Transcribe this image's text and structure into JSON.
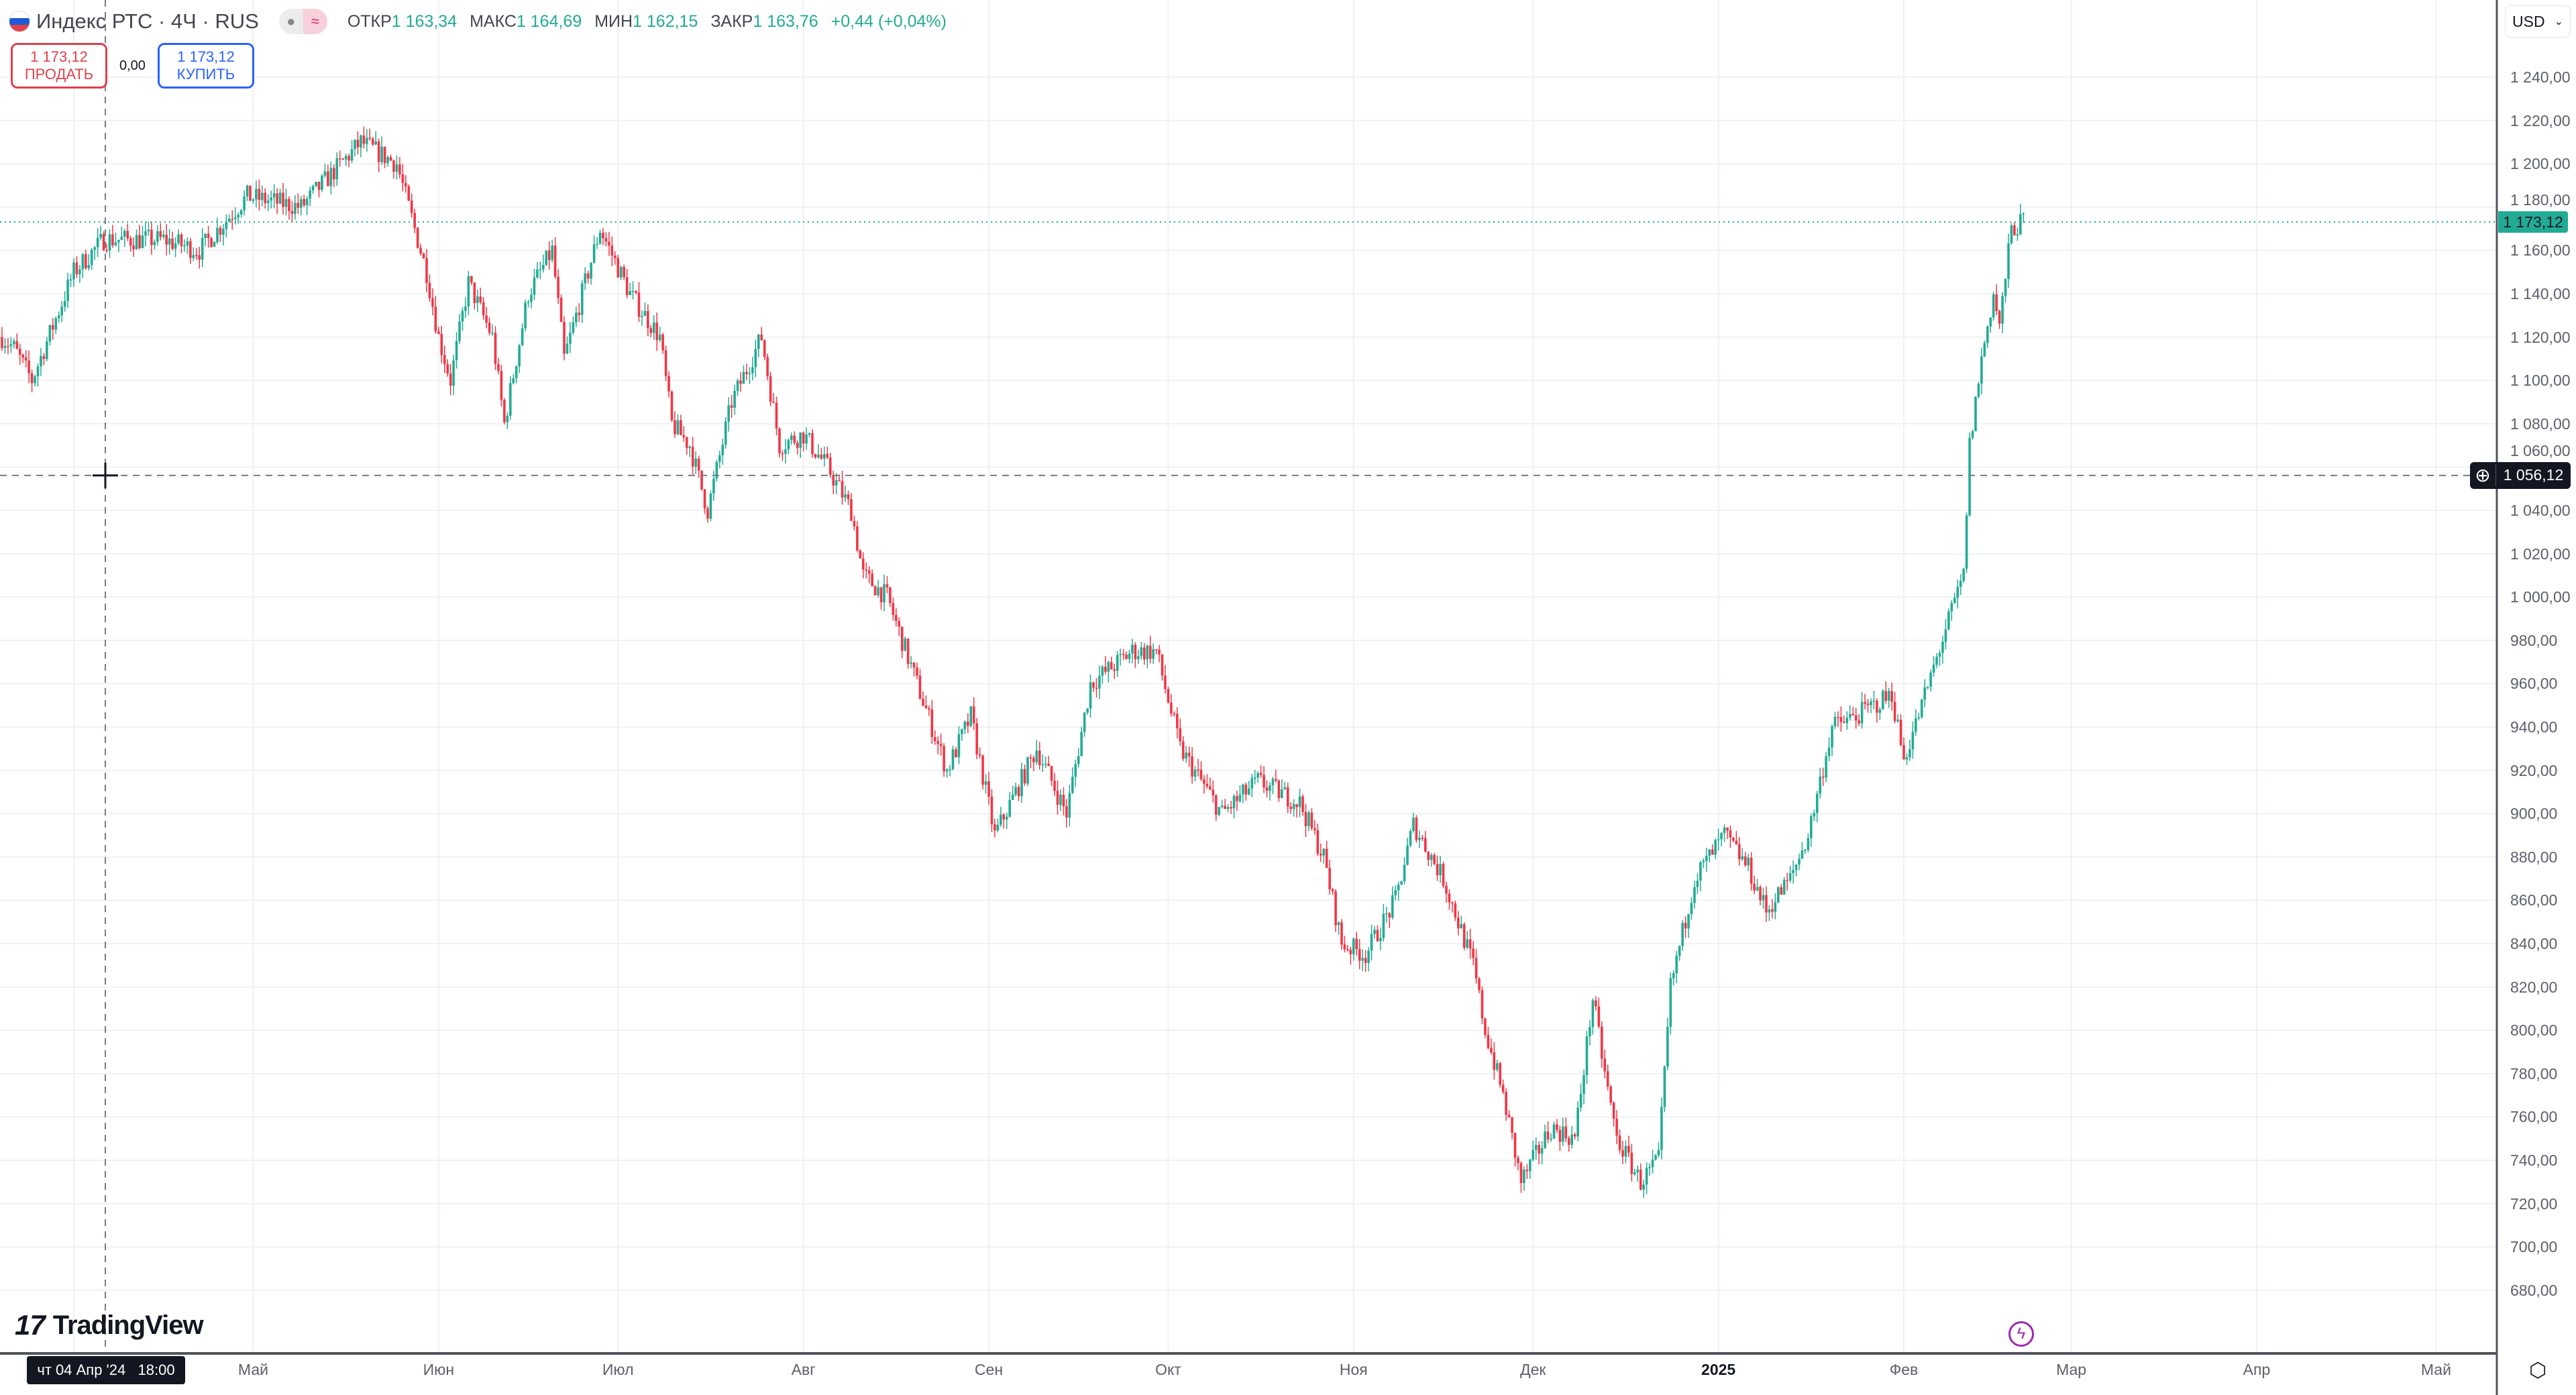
{
  "header": {
    "symbol_title": "Индекс РТС · 4Ч · RUS",
    "ohlc": {
      "open_label": "ОТКР",
      "open": "1 163,34",
      "high_label": "МАКС",
      "high": "1 164,69",
      "low_label": "МИН",
      "low": "1 162,15",
      "close_label": "ЗАКР",
      "close": "1 163,76",
      "change": "+0,44 (+0,04%)"
    }
  },
  "trade": {
    "sell_price": "1 173,12",
    "sell_label": "ПРОДАТЬ",
    "spread": "0,00",
    "buy_price": "1 173,12",
    "buy_label": "КУПИТЬ"
  },
  "currency": "USD",
  "brand": "TradingView",
  "crosshair": {
    "time_label": "чт 04 Апр '24   18:00",
    "price_label": "1 056,12",
    "price": 1056.12
  },
  "last_price": {
    "label": "1 173,12",
    "value": 1173.12
  },
  "colors": {
    "up": "#22ab94",
    "down": "#f23645",
    "grid": "#eef1f5"
  },
  "chart_data": {
    "type": "candlestick",
    "title": "Индекс РТС · 4Ч · RUS",
    "ylim": [
      670,
      1250
    ],
    "y_ticks": [
      "680,00",
      "700,00",
      "720,00",
      "740,00",
      "760,00",
      "780,00",
      "800,00",
      "820,00",
      "840,00",
      "860,00",
      "880,00",
      "900,00",
      "920,00",
      "940,00",
      "960,00",
      "980,00",
      "1 000,00",
      "1 020,00",
      "1 040,00",
      "1 060,00",
      "1 080,00",
      "1 100,00",
      "1 120,00",
      "1 140,00",
      "1 160,00",
      "1 180,00",
      "1 200,00",
      "1 220,00",
      "1 240,00"
    ],
    "x_ticks": [
      {
        "label": "Май",
        "day": 30
      },
      {
        "label": "Июн",
        "day": 61
      },
      {
        "label": "Июл",
        "day": 91
      },
      {
        "label": "Авг",
        "day": 122
      },
      {
        "label": "Сен",
        "day": 153
      },
      {
        "label": "Окт",
        "day": 183
      },
      {
        "label": "Ноя",
        "day": 214
      },
      {
        "label": "Дек",
        "day": 244
      },
      {
        "label": "2025",
        "day": 275
      },
      {
        "label": "Фев",
        "day": 306
      },
      {
        "label": "Мар",
        "day": 334
      },
      {
        "label": "Апр",
        "day": 365
      },
      {
        "label": "Май",
        "day": 395
      }
    ],
    "x_unit": "days since 2024-04-01",
    "approx_close_path": [
      [
        -12,
        1120
      ],
      [
        -10,
        1115
      ],
      [
        -7,
        1100
      ],
      [
        0,
        1150
      ],
      [
        5,
        1165
      ],
      [
        15,
        1165
      ],
      [
        21,
        1160
      ],
      [
        29,
        1185
      ],
      [
        38,
        1180
      ],
      [
        48,
        1210
      ],
      [
        54,
        1200
      ],
      [
        59,
        1150
      ],
      [
        61,
        1120
      ],
      [
        63,
        1100
      ],
      [
        66,
        1145
      ],
      [
        70,
        1120
      ],
      [
        72,
        1080
      ],
      [
        76,
        1140
      ],
      [
        80,
        1160
      ],
      [
        82,
        1110
      ],
      [
        88,
        1170
      ],
      [
        93,
        1140
      ],
      [
        98,
        1120
      ],
      [
        100,
        1080
      ],
      [
        103,
        1070
      ],
      [
        106,
        1040
      ],
      [
        110,
        1090
      ],
      [
        115,
        1120
      ],
      [
        118,
        1070
      ],
      [
        122,
        1075
      ],
      [
        126,
        1060
      ],
      [
        130,
        1040
      ],
      [
        132,
        1010
      ],
      [
        136,
        1000
      ],
      [
        141,
        960
      ],
      [
        146,
        920
      ],
      [
        150,
        945
      ],
      [
        154,
        890
      ],
      [
        161,
        930
      ],
      [
        166,
        900
      ],
      [
        170,
        960
      ],
      [
        177,
        975
      ],
      [
        181,
        975
      ],
      [
        185,
        930
      ],
      [
        192,
        900
      ],
      [
        198,
        915
      ],
      [
        205,
        905
      ],
      [
        209,
        880
      ],
      [
        212,
        840
      ],
      [
        216,
        835
      ],
      [
        221,
        860
      ],
      [
        224,
        895
      ],
      [
        229,
        870
      ],
      [
        234,
        830
      ],
      [
        236,
        800
      ],
      [
        239,
        770
      ],
      [
        242,
        730
      ],
      [
        247,
        755
      ],
      [
        251,
        750
      ],
      [
        254,
        815
      ],
      [
        256,
        780
      ],
      [
        258,
        750
      ],
      [
        262,
        730
      ],
      [
        265,
        740
      ],
      [
        267,
        820
      ],
      [
        271,
        870
      ],
      [
        276,
        890
      ],
      [
        280,
        875
      ],
      [
        283,
        855
      ],
      [
        287,
        870
      ],
      [
        290,
        890
      ],
      [
        294,
        940
      ],
      [
        298,
        945
      ],
      [
        304,
        955
      ],
      [
        306,
        925
      ],
      [
        309,
        950
      ],
      [
        313,
        985
      ],
      [
        316,
        1010
      ],
      [
        317,
        1070
      ],
      [
        319,
        1110
      ],
      [
        321,
        1140
      ],
      [
        322,
        1125
      ],
      [
        324,
        1170
      ],
      [
        326,
        1173
      ]
    ]
  }
}
